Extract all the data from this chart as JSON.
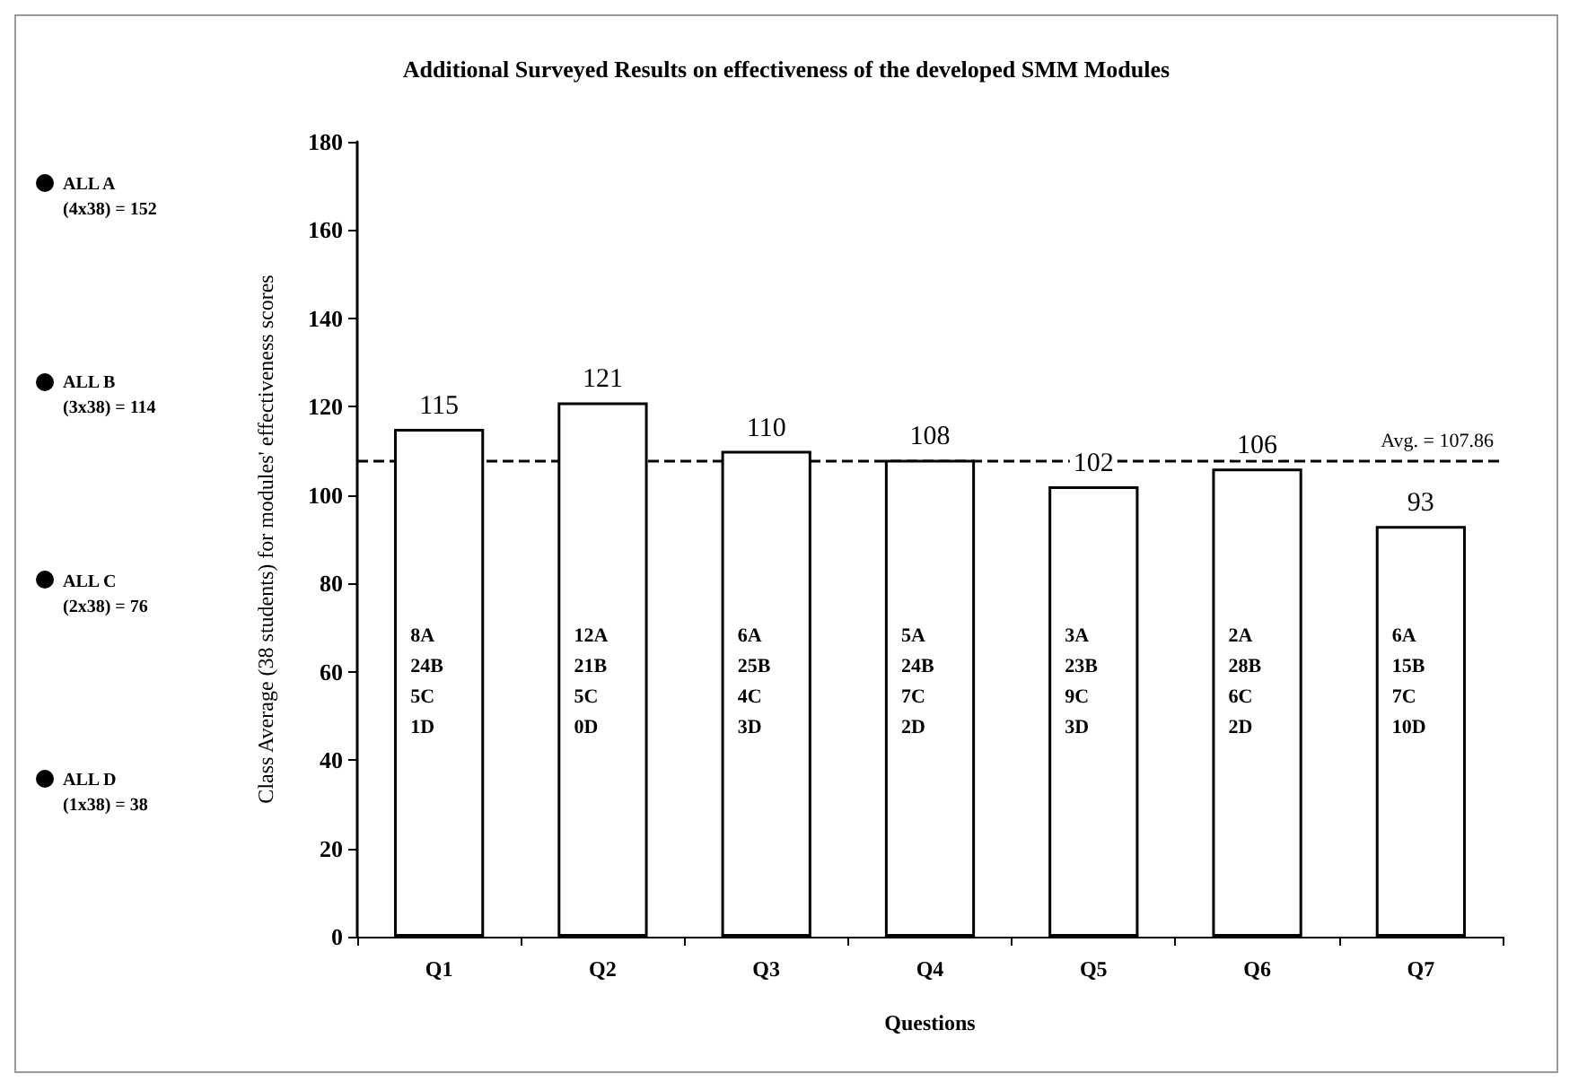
{
  "chart_data": {
    "type": "bar",
    "title": "Additional Surveyed Results on effectiveness of the developed SMM Modules",
    "xlabel": "Questions",
    "ylabel": "Class Average (38 students) for modules' effectiveness scores",
    "categories": [
      "Q1",
      "Q2",
      "Q3",
      "Q4",
      "Q5",
      "Q6",
      "Q7"
    ],
    "values": [
      115,
      121,
      110,
      108,
      102,
      106,
      93
    ],
    "color": "#ffffff",
    "ylim": [
      0,
      180
    ],
    "yticks": [
      0,
      20,
      40,
      60,
      80,
      100,
      120,
      140,
      160,
      180
    ],
    "grid": false,
    "data_labels": true,
    "ref_lines": [
      {
        "axis": "y",
        "value": 107.86,
        "label": "Avg. = 107.86",
        "line_style": "dashed",
        "color": "#000000"
      }
    ],
    "annotations": [
      "ALL A\n(4x38) = 152",
      "ALL B\n(3x38) = 114",
      "ALL C\n(2x38) = 76",
      "ALL D\n(1x38) = 38",
      "8A\n24B\n5C\n1D",
      "12A\n21B\n5C\n0D",
      "6A\n25B\n4C\n3D",
      "5A\n24B\n7C\n2D",
      "3A\n23B\n9C\n3D",
      "2A\n28B\n6C\n2D",
      "6A\n15B\n7C\n10D"
    ]
  }
}
